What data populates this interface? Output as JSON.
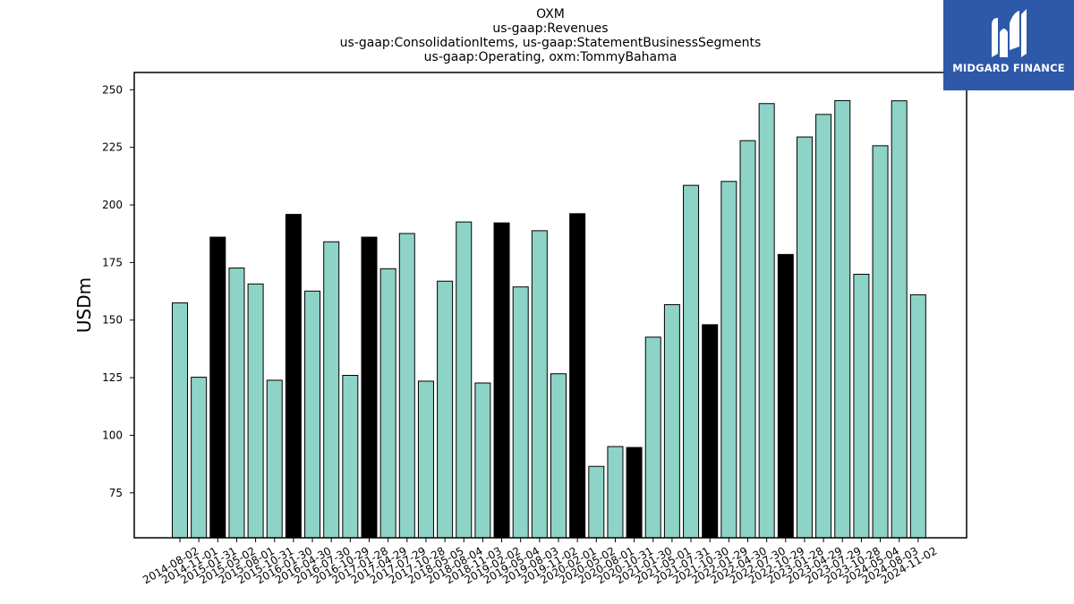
{
  "chart_data": {
    "type": "bar",
    "title_lines": [
      "OXM",
      "us-gaap:Revenues",
      "us-gaap:ConsolidationItems, us-gaap:StatementBusinessSegments",
      "us-gaap:Operating, oxm:TommyBahama"
    ],
    "ylabel": "USDm",
    "xlabel": "",
    "ylim": [
      55.5,
      257.5
    ],
    "yticks": [
      75,
      100,
      125,
      150,
      175,
      200,
      225,
      250
    ],
    "categories": [
      "2014-08-02",
      "2014-11-01",
      "2015-01-31",
      "2015-05-02",
      "2015-08-01",
      "2015-10-31",
      "2016-01-30",
      "2016-04-30",
      "2016-07-30",
      "2016-10-29",
      "2017-01-28",
      "2017-04-29",
      "2017-07-29",
      "2017-10-28",
      "2018-05-05",
      "2018-08-04",
      "2018-11-03",
      "2019-02-02",
      "2019-05-04",
      "2019-08-03",
      "2019-11-02",
      "2020-02-01",
      "2020-05-02",
      "2020-08-01",
      "2020-10-31",
      "2021-01-30",
      "2021-05-01",
      "2021-07-31",
      "2021-10-30",
      "2022-01-29",
      "2022-04-30",
      "2022-07-30",
      "2022-10-29",
      "2023-01-28",
      "2023-04-29",
      "2023-07-29",
      "2023-10-28",
      "2024-05-04",
      "2024-08-03",
      "2024-11-02"
    ],
    "values": [
      157.5,
      125.2,
      186.0,
      172.6,
      165.7,
      123.9,
      195.9,
      162.6,
      184.0,
      126.0,
      186.0,
      172.3,
      187.6,
      123.5,
      166.9,
      192.6,
      122.7,
      192.2,
      164.4,
      188.8,
      126.7,
      196.2,
      86.5,
      95.1,
      94.7,
      142.6,
      156.7,
      208.5,
      148.0,
      210.2,
      227.9,
      244.0,
      178.5,
      229.5,
      239.3,
      245.3,
      169.9,
      225.7,
      245.2,
      161.0
    ],
    "highlight_indices": [
      2,
      6,
      10,
      17,
      21,
      24,
      28,
      32
    ],
    "colors": {
      "bar": "#8dd3c7",
      "highlight": "#000000",
      "edge": "#000000",
      "logo_background": "#2d59a8"
    }
  },
  "logo": {
    "text": "MIDGARD FINANCE",
    "icon": "midgard-m-icon"
  }
}
